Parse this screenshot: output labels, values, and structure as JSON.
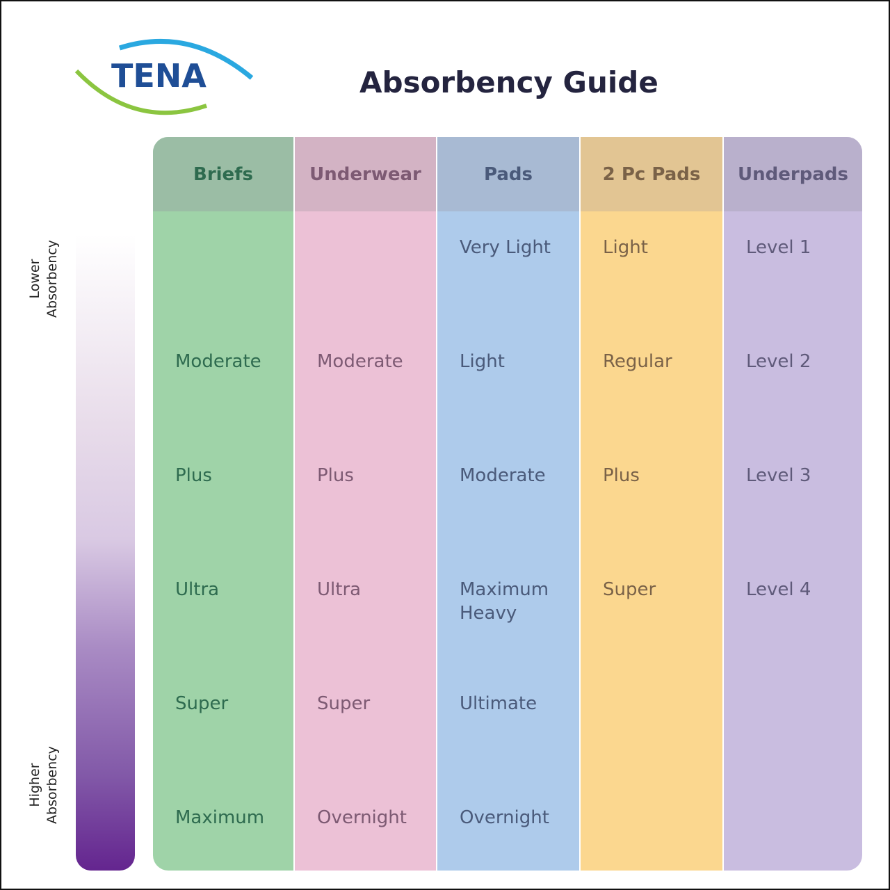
{
  "logo": "TENA",
  "title": "Absorbency Guide",
  "scale": {
    "top": "Lower Absorbency",
    "bottom": "Higher Absorbency"
  },
  "columns": [
    {
      "header": "Briefs",
      "cells": [
        null,
        "Moderate",
        "Plus",
        "Ultra",
        "Super",
        "Maximum"
      ]
    },
    {
      "header": "Underwear",
      "cells": [
        null,
        "Moderate",
        "Plus",
        "Ultra",
        "Super",
        "Overnight"
      ]
    },
    {
      "header": "Pads",
      "cells": [
        "Very Light",
        "Light",
        "Moderate",
        "Maximum Heavy",
        "Ultimate",
        "Overnight"
      ]
    },
    {
      "header": "2 Pc Pads",
      "cells": [
        "Light",
        "Regular",
        "Plus",
        "Super",
        null,
        null
      ]
    },
    {
      "header": "Underpads",
      "cells": [
        "Level 1",
        "Level 2",
        "Level 3",
        "Level 4",
        null,
        null
      ]
    }
  ]
}
